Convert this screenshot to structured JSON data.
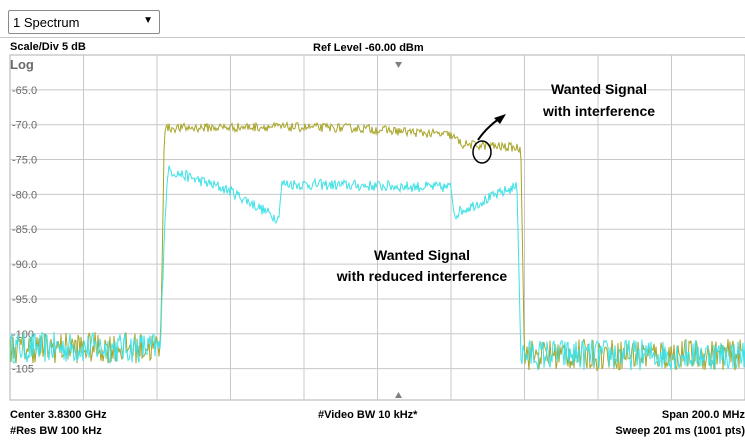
{
  "window": {
    "dropdown_label": "1 Spectrum",
    "dropdown_arrow": "triangle-down-icon"
  },
  "header": {
    "scale_div": "Scale/Div 5 dB",
    "ref_level": "Ref Level -60.00 dBm",
    "scale_mode": "Log"
  },
  "footer": {
    "center": "Center 3.8300 GHz",
    "video_bw": "#Video BW 10 kHz*",
    "span": "Span 200.0 MHz",
    "res_bw": "#Res BW 100 kHz",
    "sweep": "Sweep 201 ms (1001 pts)"
  },
  "annotations": {
    "upper": [
      "Wanted Signal",
      "with  interference"
    ],
    "lower": [
      "Wanted Signal",
      "with reduced interference"
    ]
  },
  "colors": {
    "trace1": "#a7a426",
    "trace2": "#3ee1e6",
    "grid": "#c8c8c8",
    "axis_text": "#6a6a6a"
  },
  "chart_data": {
    "type": "line",
    "xlabel": "",
    "ylabel": "",
    "x_range_mhz": [
      3730,
      3930
    ],
    "ylim": [
      -109.5,
      -60
    ],
    "y_ticks": [
      "-65.0",
      "-70.0",
      "-75.0",
      "-80.0",
      "-85.0",
      "-90.0",
      "-95.0",
      "-100",
      "-105"
    ],
    "y_tick_values": [
      -65,
      -70,
      -75,
      -80,
      -85,
      -90,
      -95,
      -100,
      -105
    ],
    "grid": true,
    "series": [
      {
        "color": "#a7a426",
        "x": [
          3730,
          3771,
          3772,
          3800,
          3825,
          3850,
          3853,
          3868,
          3869,
          3870,
          3930
        ],
        "y": [
          -102,
          -102,
          -70.5,
          -70.3,
          -70.5,
          -71.5,
          -72.8,
          -73.3,
          -73.5,
          -103,
          -103
        ]
      },
      {
        "color": "#3ee1e6",
        "x": [
          3730,
          3771,
          3772,
          3773,
          3790,
          3803,
          3804,
          3850,
          3851,
          3852,
          3867,
          3868,
          3869,
          3930
        ],
        "y": [
          -102,
          -102,
          -85,
          -76.5,
          -79.5,
          -83.5,
          -78.5,
          -79,
          -83,
          -82.5,
          -79,
          -79,
          -103,
          -103
        ]
      }
    ]
  }
}
